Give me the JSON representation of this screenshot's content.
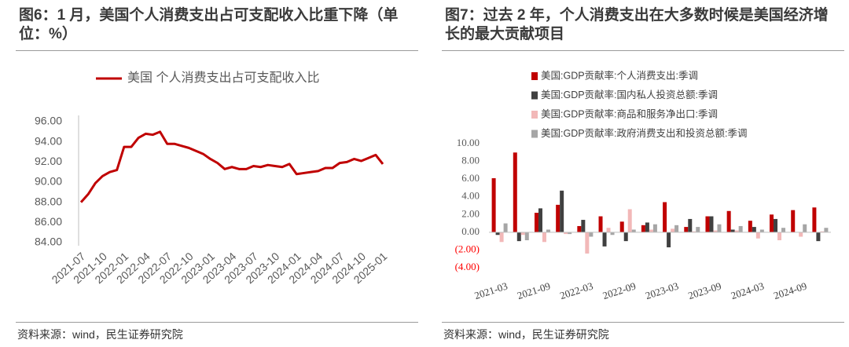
{
  "chart_data": [
    {
      "type": "line",
      "title": "图6：1 月，美国个人消费支出占可支配收入比重下降（单位：%）",
      "source": "资料来源：wind，民生证券研究院",
      "categories": [
        "2021-07",
        null,
        null,
        "2021-10",
        null,
        null,
        "2022-01",
        null,
        null,
        "2022-04",
        null,
        null,
        "2022-07",
        null,
        null,
        "2022-10",
        null,
        null,
        "2023-01",
        null,
        null,
        "2023-04",
        null,
        null,
        "2023-07",
        null,
        null,
        "2023-10",
        null,
        null,
        "2024-01",
        null,
        null,
        "2024-04",
        null,
        null,
        "2024-07",
        null,
        null,
        "2024-10",
        null,
        null,
        "2025-01"
      ],
      "series": [
        {
          "name": "美国 个人消费支出占可支配收入比",
          "color": "#c00000",
          "values": [
            88.0,
            88.8,
            89.9,
            90.6,
            91.0,
            91.2,
            93.5,
            93.5,
            94.4,
            94.8,
            94.7,
            95.0,
            93.8,
            93.8,
            93.6,
            93.4,
            93.1,
            92.8,
            92.3,
            91.9,
            91.3,
            91.5,
            91.3,
            91.3,
            91.6,
            91.5,
            91.7,
            91.6,
            91.5,
            91.8,
            90.8,
            90.9,
            91.0,
            91.1,
            91.4,
            91.4,
            91.9,
            92.0,
            92.3,
            92.1,
            92.4,
            92.7,
            91.8
          ]
        }
      ],
      "ylim": [
        84,
        96
      ],
      "yticks": [
        {
          "value": 84,
          "label": "84.00"
        },
        {
          "value": 86,
          "label": "86.00"
        },
        {
          "value": 88,
          "label": "88.00"
        },
        {
          "value": 90,
          "label": "90.00"
        },
        {
          "value": 92,
          "label": "92.00"
        },
        {
          "value": 94,
          "label": "94.00"
        },
        {
          "value": 96,
          "label": "96.00"
        }
      ],
      "legend": "top",
      "grid": false
    },
    {
      "type": "bar",
      "title": "图7：过去 2 年，个人消费支出在大多数时候是美国经济增长的最大贡献项目",
      "source": "资料来源：wind，民生证券研究院",
      "categories": [
        "2021-03",
        null,
        "2021-09",
        null,
        "2022-03",
        null,
        "2022-09",
        null,
        "2023-03",
        null,
        "2023-09",
        null,
        "2024-03",
        null,
        "2024-09",
        null
      ],
      "series": [
        {
          "name": "美国:GDP贡献率:个人消费支出:季调",
          "color": "#c00000",
          "values": [
            6.1,
            9.0,
            2.2,
            3.1,
            0.7,
            1.8,
            1.2,
            0.8,
            3.4,
            0.6,
            1.8,
            2.4,
            1.3,
            2.0,
            2.5,
            2.8
          ]
        },
        {
          "name": "美国:GDP贡献率:国内私人投资总额:季调",
          "color": "#404040",
          "values": [
            -0.3,
            -1.0,
            2.7,
            4.7,
            1.4,
            -1.6,
            -1.0,
            1.1,
            -1.7,
            1.5,
            1.8,
            0.3,
            0.6,
            1.5,
            0.0,
            -1.0
          ]
        },
        {
          "name": "美国:GDP贡献率:商品和服务净出口:季调",
          "color": "#f2b8b8",
          "values": [
            -1.1,
            -0.3,
            -1.1,
            -0.2,
            -2.4,
            0.5,
            2.6,
            0.3,
            0.4,
            0.1,
            0.2,
            0.2,
            -0.7,
            -0.9,
            -0.5,
            0.1
          ]
        },
        {
          "name": "美国:GDP贡献率:政府消费支出和投资总额:季调",
          "color": "#a6a6a6",
          "values": [
            1.0,
            -0.9,
            0.3,
            -0.2,
            -0.5,
            -0.3,
            0.3,
            0.9,
            0.8,
            0.6,
            0.9,
            0.7,
            0.3,
            0.5,
            0.9,
            0.5
          ]
        }
      ],
      "ylim": [
        -4,
        10
      ],
      "yticks": [
        {
          "value": -4,
          "label": "(4.00)"
        },
        {
          "value": -2,
          "label": "(2.00)"
        },
        {
          "value": 0,
          "label": "0.00"
        },
        {
          "value": 2,
          "label": "2.00"
        },
        {
          "value": 4,
          "label": "4.00"
        },
        {
          "value": 6,
          "label": "6.00"
        },
        {
          "value": 8,
          "label": "8.00"
        },
        {
          "value": 10,
          "label": "10.00"
        }
      ],
      "negative_tick_color": "#ff0000",
      "legend": "top-left",
      "grid": false
    }
  ]
}
